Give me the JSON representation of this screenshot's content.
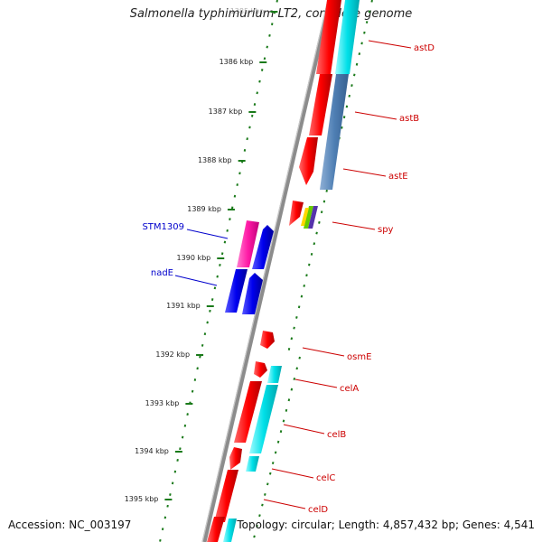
{
  "title": "Salmonella typhimurium LT2, complete genome",
  "footer": {
    "accession": "Accession: NC_003197",
    "topology": "Topology: circular; Length: 4,857,432 bp; Genes: 4,541"
  },
  "colors": {
    "backbone": "#8c8c8c",
    "tick": "#1a7a1a",
    "label_red": "#cc0000",
    "label_blue": "#0000cc"
  },
  "ticks": [
    {
      "text": "1385 kbp"
    },
    {
      "text": "1386 kbp"
    },
    {
      "text": "1387 kbp"
    },
    {
      "text": "1388 kbp"
    },
    {
      "text": "1389 kbp"
    },
    {
      "text": "1390 kbp"
    },
    {
      "text": "1391 kbp"
    },
    {
      "text": "1392 kbp"
    },
    {
      "text": "1393 kbp"
    },
    {
      "text": "1394 kbp"
    },
    {
      "text": "1395 kbp"
    }
  ],
  "gene_labels": [
    {
      "text": "astD",
      "color": "#cc0000"
    },
    {
      "text": "astB",
      "color": "#cc0000"
    },
    {
      "text": "astE",
      "color": "#cc0000"
    },
    {
      "text": "spy",
      "color": "#cc0000"
    },
    {
      "text": "STM1309",
      "color": "#0000cc"
    },
    {
      "text": "nadE",
      "color": "#0000cc"
    },
    {
      "text": "osmE",
      "color": "#cc0000"
    },
    {
      "text": "celA",
      "color": "#cc0000"
    },
    {
      "text": "celB",
      "color": "#cc0000"
    },
    {
      "text": "celC",
      "color": "#cc0000"
    },
    {
      "text": "celD",
      "color": "#cc0000"
    }
  ]
}
